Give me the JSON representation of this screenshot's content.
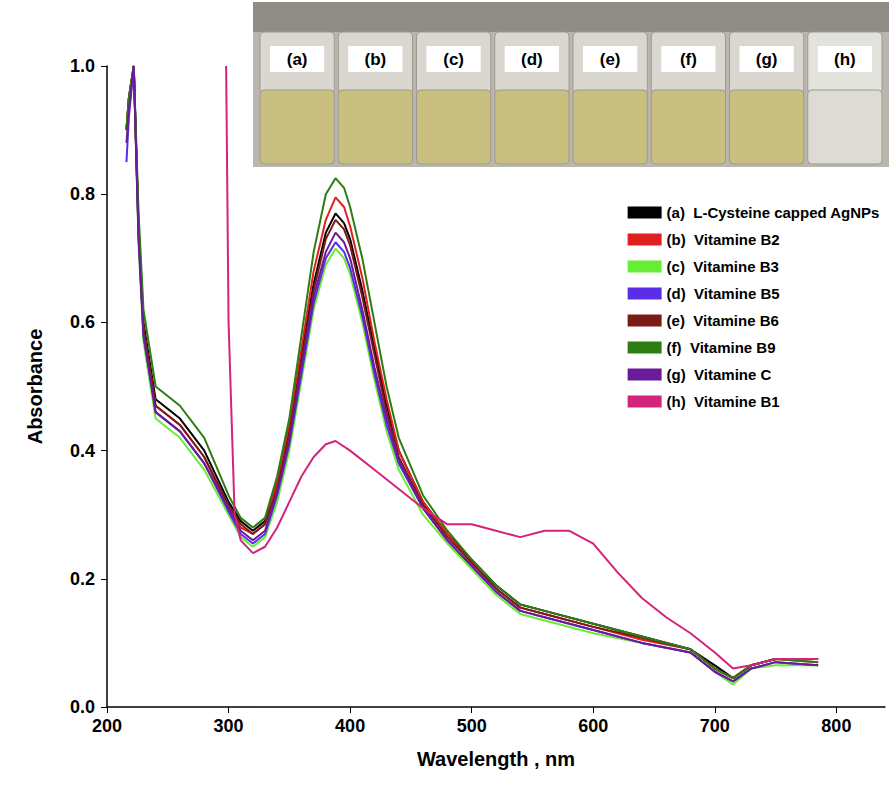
{
  "chart_data": {
    "type": "line",
    "x_label": "Wavelength , nm",
    "y_label": "Absorbance",
    "xlim": [
      200,
      840
    ],
    "xticks": [
      200,
      300,
      400,
      500,
      600,
      700,
      800
    ],
    "ylim": [
      0,
      1
    ],
    "yticks": [
      {
        "value": 0,
        "label": "0.0"
      },
      {
        "value": 0.2,
        "label": "0.2"
      },
      {
        "value": 0.4,
        "label": "0.4"
      },
      {
        "value": 0.6,
        "label": "0.6"
      },
      {
        "value": 0.8,
        "label": "0.8"
      },
      {
        "value": 1,
        "label": "1.0"
      }
    ],
    "grid": false,
    "legend": "right",
    "inset_labels": [
      "(a)",
      "(b)",
      "(c)",
      "(d)",
      "(e)",
      "(f)",
      "(g)",
      "(h)"
    ],
    "x": [
      216,
      218,
      222,
      226,
      230,
      240,
      260,
      280,
      300,
      310,
      320,
      330,
      340,
      350,
      360,
      370,
      380,
      388,
      395,
      400,
      410,
      420,
      430,
      440,
      460,
      480,
      500,
      520,
      540,
      560,
      600,
      640,
      680,
      700,
      715,
      730,
      750,
      785
    ],
    "series": [
      {
        "tag": "(a)",
        "name": "L-Cysteine capped AgNPs",
        "color": "#000000",
        "values": [
          0.9,
          0.95,
          1.0,
          0.75,
          0.6,
          0.48,
          0.45,
          0.4,
          0.32,
          0.29,
          0.275,
          0.29,
          0.35,
          0.43,
          0.55,
          0.66,
          0.74,
          0.77,
          0.755,
          0.73,
          0.65,
          0.56,
          0.47,
          0.4,
          0.32,
          0.27,
          0.23,
          0.19,
          0.16,
          0.15,
          0.13,
          0.11,
          0.09,
          0.065,
          0.045,
          0.065,
          0.075,
          0.075
        ]
      },
      {
        "tag": "(b)",
        "name": "Vitamine B2",
        "color": "#e02020",
        "values": [
          0.9,
          0.95,
          1.0,
          0.74,
          0.59,
          0.47,
          0.44,
          0.39,
          0.31,
          0.28,
          0.27,
          0.285,
          0.35,
          0.44,
          0.56,
          0.68,
          0.76,
          0.795,
          0.78,
          0.75,
          0.67,
          0.57,
          0.48,
          0.4,
          0.32,
          0.27,
          0.225,
          0.185,
          0.155,
          0.145,
          0.125,
          0.105,
          0.09,
          0.06,
          0.045,
          0.065,
          0.075,
          0.07
        ]
      },
      {
        "tag": "(c)",
        "name": "Vitamine B3",
        "color": "#66ee33",
        "values": [
          0.9,
          0.95,
          1.0,
          0.72,
          0.57,
          0.45,
          0.42,
          0.37,
          0.3,
          0.265,
          0.25,
          0.265,
          0.32,
          0.4,
          0.51,
          0.62,
          0.69,
          0.715,
          0.7,
          0.675,
          0.6,
          0.51,
          0.43,
          0.37,
          0.3,
          0.255,
          0.215,
          0.175,
          0.145,
          0.135,
          0.115,
          0.1,
          0.085,
          0.055,
          0.035,
          0.06,
          0.065,
          0.065
        ]
      },
      {
        "tag": "(d)",
        "name": "Vitamine B5",
        "color": "#5a2ee6",
        "values": [
          0.85,
          0.92,
          1.0,
          0.73,
          0.58,
          0.46,
          0.43,
          0.38,
          0.305,
          0.27,
          0.255,
          0.27,
          0.33,
          0.41,
          0.52,
          0.63,
          0.7,
          0.725,
          0.71,
          0.685,
          0.61,
          0.52,
          0.44,
          0.38,
          0.31,
          0.26,
          0.22,
          0.18,
          0.15,
          0.14,
          0.12,
          0.1,
          0.085,
          0.055,
          0.04,
          0.06,
          0.07,
          0.065
        ]
      },
      {
        "tag": "(e)",
        "name": "Vitamine B6",
        "color": "#7a1c14",
        "values": [
          0.9,
          0.95,
          1.0,
          0.74,
          0.59,
          0.47,
          0.44,
          0.39,
          0.315,
          0.285,
          0.27,
          0.285,
          0.34,
          0.425,
          0.54,
          0.65,
          0.73,
          0.76,
          0.745,
          0.72,
          0.64,
          0.55,
          0.46,
          0.39,
          0.315,
          0.265,
          0.225,
          0.185,
          0.155,
          0.145,
          0.125,
          0.108,
          0.09,
          0.06,
          0.045,
          0.065,
          0.075,
          0.075
        ]
      },
      {
        "tag": "(f)",
        "name": "Vitamine B9",
        "color": "#2e7d12",
        "values": [
          0.9,
          0.95,
          1.0,
          0.77,
          0.62,
          0.5,
          0.47,
          0.42,
          0.33,
          0.295,
          0.28,
          0.295,
          0.36,
          0.45,
          0.58,
          0.71,
          0.8,
          0.825,
          0.81,
          0.78,
          0.7,
          0.6,
          0.5,
          0.42,
          0.33,
          0.275,
          0.23,
          0.19,
          0.16,
          0.15,
          0.13,
          0.11,
          0.09,
          0.06,
          0.045,
          0.065,
          0.075,
          0.07
        ]
      },
      {
        "tag": "(g)",
        "name": "Vitamine C",
        "color": "#6a1b9a",
        "values": [
          0.88,
          0.93,
          1.0,
          0.73,
          0.58,
          0.46,
          0.43,
          0.38,
          0.31,
          0.275,
          0.26,
          0.275,
          0.335,
          0.415,
          0.53,
          0.64,
          0.71,
          0.74,
          0.725,
          0.7,
          0.62,
          0.53,
          0.45,
          0.385,
          0.31,
          0.26,
          0.22,
          0.18,
          0.15,
          0.14,
          0.12,
          0.1,
          0.085,
          0.055,
          0.04,
          0.06,
          0.07,
          0.065
        ]
      },
      {
        "tag": "(h)",
        "name": "Vitamine B1",
        "color": "#d4237a",
        "x": [
          298,
          300,
          305,
          310,
          320,
          330,
          340,
          350,
          360,
          370,
          380,
          388,
          400,
          420,
          440,
          460,
          480,
          500,
          520,
          540,
          560,
          580,
          600,
          620,
          640,
          660,
          680,
          700,
          715,
          730,
          750,
          785
        ],
        "values": [
          1.0,
          0.6,
          0.3,
          0.26,
          0.24,
          0.25,
          0.28,
          0.32,
          0.36,
          0.39,
          0.41,
          0.415,
          0.4,
          0.37,
          0.34,
          0.31,
          0.285,
          0.285,
          0.275,
          0.265,
          0.275,
          0.275,
          0.255,
          0.21,
          0.17,
          0.14,
          0.115,
          0.085,
          0.06,
          0.065,
          0.075,
          0.075
        ]
      }
    ]
  }
}
